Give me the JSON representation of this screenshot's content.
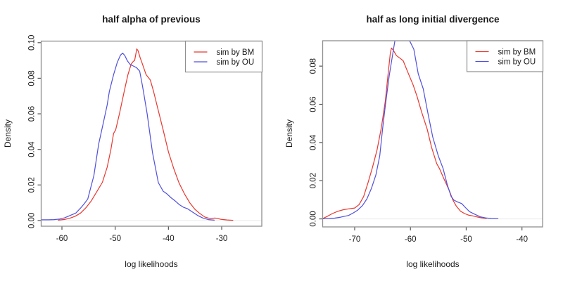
{
  "figure": {
    "background": "#ffffff",
    "frame_color": "#8f8f8f",
    "tick_color": "#555555",
    "zero_line_color": "#e9e9e9"
  },
  "legend": {
    "entries": [
      {
        "label": "sim by BM",
        "color": "#e8372e"
      },
      {
        "label": "sim by OU",
        "color": "#5050dc"
      }
    ]
  },
  "chart_data": [
    {
      "type": "line",
      "title": "half alpha of previous",
      "xlabel": "log likelihoods",
      "ylabel": "Density",
      "xlim": [
        -63.9,
        -22.5
      ],
      "ylim": [
        0,
        0.101
      ],
      "x_ticks": [
        "-60",
        "-50",
        "-40",
        "-30"
      ],
      "y_ticks": [
        "0.00",
        "0.02",
        "0.04",
        "0.06",
        "0.08",
        "0.10"
      ],
      "grid": false,
      "legend_position": "topright",
      "series": [
        {
          "name": "sim by BM",
          "color": "#e8372e",
          "points": [
            [
              -60.7,
              0.0002
            ],
            [
              -59.5,
              0.0006
            ],
            [
              -58.5,
              0.0013
            ],
            [
              -57.5,
              0.0024
            ],
            [
              -56.5,
              0.0042
            ],
            [
              -55.5,
              0.0072
            ],
            [
              -54.5,
              0.011
            ],
            [
              -53.5,
              0.016
            ],
            [
              -52.4,
              0.0215
            ],
            [
              -51.5,
              0.03
            ],
            [
              -50.8,
              0.04
            ],
            [
              -50.3,
              0.049
            ],
            [
              -49.9,
              0.051
            ],
            [
              -49.2,
              0.06
            ],
            [
              -48.3,
              0.0726
            ],
            [
              -47.6,
              0.082
            ],
            [
              -47,
              0.088
            ],
            [
              -46.6,
              0.0895
            ],
            [
              -46.35,
              0.09
            ],
            [
              -46.1,
              0.094
            ],
            [
              -45.95,
              0.0965
            ],
            [
              -45.7,
              0.0955
            ],
            [
              -45.3,
              0.0915
            ],
            [
              -45,
              0.089
            ],
            [
              -44.2,
              0.082
            ],
            [
              -43.4,
              0.079
            ],
            [
              -42.8,
              0.0726
            ],
            [
              -42,
              0.063
            ],
            [
              -41,
              0.051
            ],
            [
              -40,
              0.0385
            ],
            [
              -39,
              0.0292
            ],
            [
              -38,
              0.021
            ],
            [
              -37,
              0.015
            ],
            [
              -36,
              0.01
            ],
            [
              -35,
              0.0062
            ],
            [
              -34.2,
              0.0042
            ],
            [
              -33.2,
              0.002
            ],
            [
              -32.2,
              0.0011
            ],
            [
              -31.2,
              0.0014
            ],
            [
              -30.2,
              0.0007
            ],
            [
              -29,
              0.0003
            ],
            [
              -27.9,
              0.0001
            ]
          ]
        },
        {
          "name": "sim by OU",
          "color": "#5050dc",
          "points": [
            [
              -63.9,
              0.0004
            ],
            [
              -62.5,
              0.0004
            ],
            [
              -61.5,
              0.0005
            ],
            [
              -60.5,
              0.0008
            ],
            [
              -59.5,
              0.0015
            ],
            [
              -58.5,
              0.0028
            ],
            [
              -57.4,
              0.0042
            ],
            [
              -56.5,
              0.007
            ],
            [
              -55.8,
              0.0095
            ],
            [
              -55.15,
              0.0121
            ],
            [
              -54.6,
              0.0185
            ],
            [
              -54,
              0.0253
            ],
            [
              -53.1,
              0.043
            ],
            [
              -52.3,
              0.054
            ],
            [
              -51.5,
              0.065
            ],
            [
              -51.1,
              0.0726
            ],
            [
              -50.3,
              0.082
            ],
            [
              -49.6,
              0.089
            ],
            [
              -49,
              0.093
            ],
            [
              -48.6,
              0.0941
            ],
            [
              -48.2,
              0.0928
            ],
            [
              -47.7,
              0.0897
            ],
            [
              -47.2,
              0.0878
            ],
            [
              -46.5,
              0.0867
            ],
            [
              -46,
              0.086
            ],
            [
              -45.4,
              0.084
            ],
            [
              -44.9,
              0.076
            ],
            [
              -44.7,
              0.0726
            ],
            [
              -44,
              0.06
            ],
            [
              -43,
              0.0384
            ],
            [
              -42.4,
              0.029
            ],
            [
              -41.9,
              0.0213
            ],
            [
              -41,
              0.0165
            ],
            [
              -40.3,
              0.015
            ],
            [
              -39.5,
              0.0128
            ],
            [
              -38.8,
              0.0112
            ],
            [
              -38,
              0.009
            ],
            [
              -37.2,
              0.0075
            ],
            [
              -36.4,
              0.0066
            ],
            [
              -35.5,
              0.0048
            ],
            [
              -34.5,
              0.0028
            ],
            [
              -33.5,
              0.0014
            ],
            [
              -32.5,
              0.0005
            ],
            [
              -31.4,
              0.0002
            ]
          ]
        }
      ]
    },
    {
      "type": "line",
      "title": "half as long initial divergence",
      "xlabel": "log likelihoods",
      "ylabel": "Density",
      "xlim": [
        -75.7,
        -36.3
      ],
      "ylim": [
        0,
        0.0933
      ],
      "x_ticks": [
        "-70",
        "-60",
        "-50",
        "-40"
      ],
      "y_ticks": [
        "0.00",
        "0.02",
        "0.04",
        "0.06",
        "0.08"
      ],
      "grid": false,
      "legend_position": "topright",
      "series": [
        {
          "name": "sim by BM",
          "color": "#e8372e",
          "points": [
            [
              -75.7,
              0.0002
            ],
            [
              -75,
              0.0012
            ],
            [
              -74,
              0.0028
            ],
            [
              -73,
              0.004
            ],
            [
              -72,
              0.0048
            ],
            [
              -71,
              0.0053
            ],
            [
              -70,
              0.0057
            ],
            [
              -69.2,
              0.0075
            ],
            [
              -68.4,
              0.0117
            ],
            [
              -67.6,
              0.019
            ],
            [
              -66.8,
              0.027
            ],
            [
              -66,
              0.036
            ],
            [
              -65.2,
              0.048
            ],
            [
              -64.5,
              0.062
            ],
            [
              -64,
              0.076
            ],
            [
              -63.6,
              0.087
            ],
            [
              -63.4,
              0.0895
            ],
            [
              -63,
              0.088
            ],
            [
              -62.5,
              0.0855
            ],
            [
              -61.8,
              0.084
            ],
            [
              -61.3,
              0.0828
            ],
            [
              -60.5,
              0.077
            ],
            [
              -59.5,
              0.07
            ],
            [
              -58.8,
              0.064
            ],
            [
              -58,
              0.056
            ],
            [
              -57,
              0.047
            ],
            [
              -56.2,
              0.0374
            ],
            [
              -55.3,
              0.029
            ],
            [
              -54.8,
              0.0264
            ],
            [
              -54,
              0.021
            ],
            [
              -53.1,
              0.0153
            ],
            [
              -52.4,
              0.01
            ],
            [
              -51.8,
              0.0068
            ],
            [
              -51,
              0.004
            ],
            [
              -50.3,
              0.0028
            ],
            [
              -49.5,
              0.0019
            ],
            [
              -48.9,
              0.0016
            ],
            [
              -48,
              0.001
            ],
            [
              -47.2,
              0.0005
            ],
            [
              -46.4,
              0.0002
            ]
          ]
        },
        {
          "name": "sim by OU",
          "color": "#5050dc",
          "points": [
            [
              -75.7,
              0.0001
            ],
            [
              -74.5,
              0.0002
            ],
            [
              -73.6,
              0.0004
            ],
            [
              -72.5,
              0.0009
            ],
            [
              -71.1,
              0.0018
            ],
            [
              -70.2,
              0.0032
            ],
            [
              -69.45,
              0.0046
            ],
            [
              -68.6,
              0.007
            ],
            [
              -67.8,
              0.0105
            ],
            [
              -67,
              0.016
            ],
            [
              -66.2,
              0.023
            ],
            [
              -65.5,
              0.033
            ],
            [
              -65,
              0.047
            ],
            [
              -64.5,
              0.0595
            ],
            [
              -63.8,
              0.075
            ],
            [
              -63.2,
              0.086
            ],
            [
              -62.8,
              0.093
            ],
            [
              -62.3,
              0.097
            ],
            [
              -61.4,
              0.0988
            ],
            [
              -60.6,
              0.0955
            ],
            [
              -60.1,
              0.093
            ],
            [
              -59.4,
              0.0889
            ],
            [
              -58.6,
              0.076
            ],
            [
              -57.7,
              0.0681
            ],
            [
              -56.9,
              0.0558
            ],
            [
              -56,
              0.0429
            ],
            [
              -55,
              0.033
            ],
            [
              -54.15,
              0.0264
            ],
            [
              -53.4,
              0.018
            ],
            [
              -52.7,
              0.0117
            ],
            [
              -52.2,
              0.0098
            ],
            [
              -51.5,
              0.0088
            ],
            [
              -50.8,
              0.008
            ],
            [
              -50.2,
              0.0061
            ],
            [
              -49.4,
              0.0038
            ],
            [
              -48.5,
              0.0025
            ],
            [
              -47.5,
              0.0011
            ],
            [
              -46.5,
              0.0005
            ],
            [
              -45.5,
              0.0002
            ],
            [
              -44.3,
              0.0001
            ]
          ]
        }
      ]
    }
  ]
}
